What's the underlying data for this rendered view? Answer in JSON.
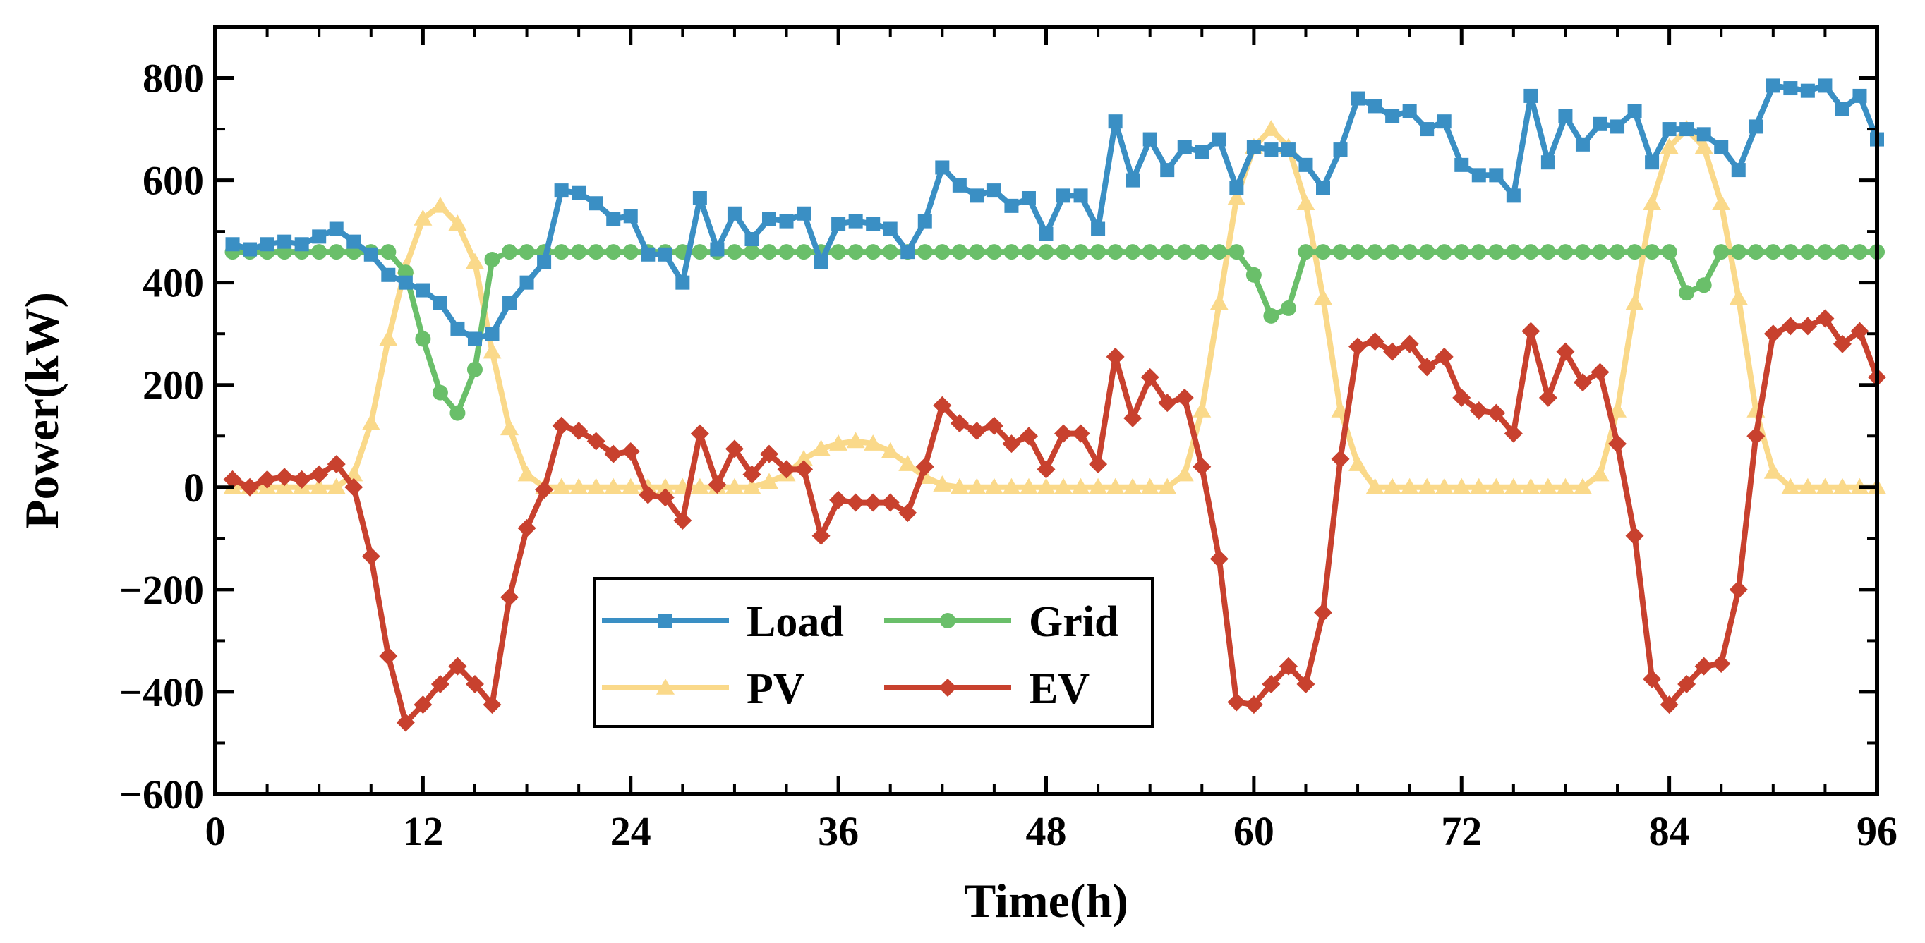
{
  "chart_data": {
    "type": "line",
    "title": "",
    "xlabel": "Time(h)",
    "ylabel": "Power(kW)",
    "xlim": [
      0,
      96
    ],
    "ylim": [
      -600,
      900
    ],
    "xticks": [
      0,
      12,
      24,
      36,
      48,
      60,
      72,
      84,
      96
    ],
    "xtick_labels": [
      "0",
      "12",
      "24",
      "36",
      "48",
      "60",
      "72",
      "84",
      "96"
    ],
    "yticks": [
      -600,
      -400,
      -200,
      0,
      200,
      400,
      600,
      800
    ],
    "ytick_labels": [
      "−600",
      "−400",
      "−200",
      "0",
      "200",
      "400",
      "600",
      "800"
    ],
    "grid": false,
    "legend_position": "bottom-center",
    "x": [
      1,
      2,
      3,
      4,
      5,
      6,
      7,
      8,
      9,
      10,
      11,
      12,
      13,
      14,
      15,
      16,
      17,
      18,
      19,
      20,
      21,
      22,
      23,
      24,
      25,
      26,
      27,
      28,
      29,
      30,
      31,
      32,
      33,
      34,
      35,
      36,
      37,
      38,
      39,
      40,
      41,
      42,
      43,
      44,
      45,
      46,
      47,
      48,
      49,
      50,
      51,
      52,
      53,
      54,
      55,
      56,
      57,
      58,
      59,
      60,
      61,
      62,
      63,
      64,
      65,
      66,
      67,
      68,
      69,
      70,
      71,
      72,
      73,
      74,
      75,
      76,
      77,
      78,
      79,
      80,
      81,
      82,
      83,
      84,
      85,
      86,
      87,
      88,
      89,
      90,
      91,
      92,
      93,
      94,
      95,
      96
    ],
    "series": [
      {
        "name": "Load",
        "color": "#3a8fc4",
        "marker": "square",
        "values": [
          475,
          465,
          475,
          480,
          475,
          490,
          505,
          480,
          455,
          415,
          400,
          385,
          360,
          310,
          290,
          300,
          360,
          400,
          440,
          580,
          575,
          555,
          525,
          530,
          455,
          455,
          400,
          565,
          465,
          535,
          485,
          525,
          520,
          535,
          440,
          515,
          520,
          515,
          505,
          460,
          520,
          625,
          590,
          570,
          580,
          550,
          565,
          495,
          570,
          570,
          505,
          715,
          600,
          680,
          620,
          665,
          655,
          680,
          585,
          665,
          660,
          660,
          630,
          585,
          660,
          760,
          745,
          725,
          735,
          700,
          715,
          630,
          610,
          610,
          570,
          765,
          635,
          725,
          670,
          710,
          705,
          735,
          635,
          700,
          700,
          690,
          665,
          620,
          705,
          785,
          780,
          775,
          785,
          740,
          765,
          680
        ]
      },
      {
        "name": "Grid",
        "color": "#6abf6a",
        "marker": "circle",
        "values": [
          460,
          460,
          460,
          460,
          460,
          460,
          460,
          460,
          460,
          460,
          420,
          290,
          185,
          145,
          230,
          445,
          460,
          460,
          460,
          460,
          460,
          460,
          460,
          460,
          460,
          460,
          460,
          460,
          460,
          460,
          460,
          460,
          460,
          460,
          460,
          460,
          460,
          460,
          460,
          460,
          460,
          460,
          460,
          460,
          460,
          460,
          460,
          460,
          460,
          460,
          460,
          460,
          460,
          460,
          460,
          460,
          460,
          460,
          460,
          415,
          335,
          350,
          460,
          460,
          460,
          460,
          460,
          460,
          460,
          460,
          460,
          460,
          460,
          460,
          460,
          460,
          460,
          460,
          460,
          460,
          460,
          460,
          460,
          460,
          380,
          395,
          460,
          460,
          460,
          460,
          460,
          460,
          460,
          460,
          460,
          460
        ]
      },
      {
        "name": "PV",
        "color": "#fad98a",
        "marker": "triangle",
        "values": [
          0,
          0,
          0,
          0,
          0,
          0,
          0,
          25,
          125,
          290,
          430,
          525,
          550,
          515,
          440,
          265,
          115,
          25,
          0,
          0,
          0,
          0,
          0,
          0,
          0,
          0,
          0,
          0,
          0,
          0,
          0,
          10,
          25,
          55,
          75,
          85,
          90,
          85,
          70,
          45,
          20,
          5,
          0,
          0,
          0,
          0,
          0,
          0,
          0,
          0,
          0,
          0,
          0,
          0,
          0,
          25,
          150,
          360,
          565,
          665,
          700,
          665,
          555,
          370,
          150,
          45,
          0,
          0,
          0,
          0,
          0,
          0,
          0,
          0,
          0,
          0,
          0,
          0,
          0,
          25,
          150,
          360,
          555,
          665,
          700,
          665,
          555,
          370,
          150,
          30,
          0,
          0,
          0,
          0,
          0,
          0
        ]
      },
      {
        "name": "EV",
        "color": "#c8412e",
        "marker": "diamond",
        "values": [
          15,
          0,
          15,
          20,
          15,
          25,
          45,
          0,
          -135,
          -330,
          -460,
          -425,
          -385,
          -350,
          -385,
          -425,
          -215,
          -80,
          -5,
          120,
          110,
          90,
          65,
          70,
          -15,
          -20,
          -65,
          105,
          5,
          75,
          25,
          65,
          35,
          35,
          -95,
          -25,
          -30,
          -30,
          -30,
          -50,
          40,
          160,
          125,
          110,
          120,
          85,
          100,
          35,
          105,
          105,
          45,
          255,
          135,
          215,
          165,
          175,
          40,
          -140,
          -420,
          -425,
          -385,
          -350,
          -385,
          -245,
          55,
          275,
          285,
          265,
          280,
          235,
          255,
          175,
          150,
          145,
          105,
          305,
          175,
          265,
          205,
          225,
          85,
          -95,
          -375,
          -425,
          -385,
          -350,
          -345,
          -200,
          100,
          300,
          315,
          315,
          330,
          280,
          305,
          215
        ]
      }
    ]
  }
}
